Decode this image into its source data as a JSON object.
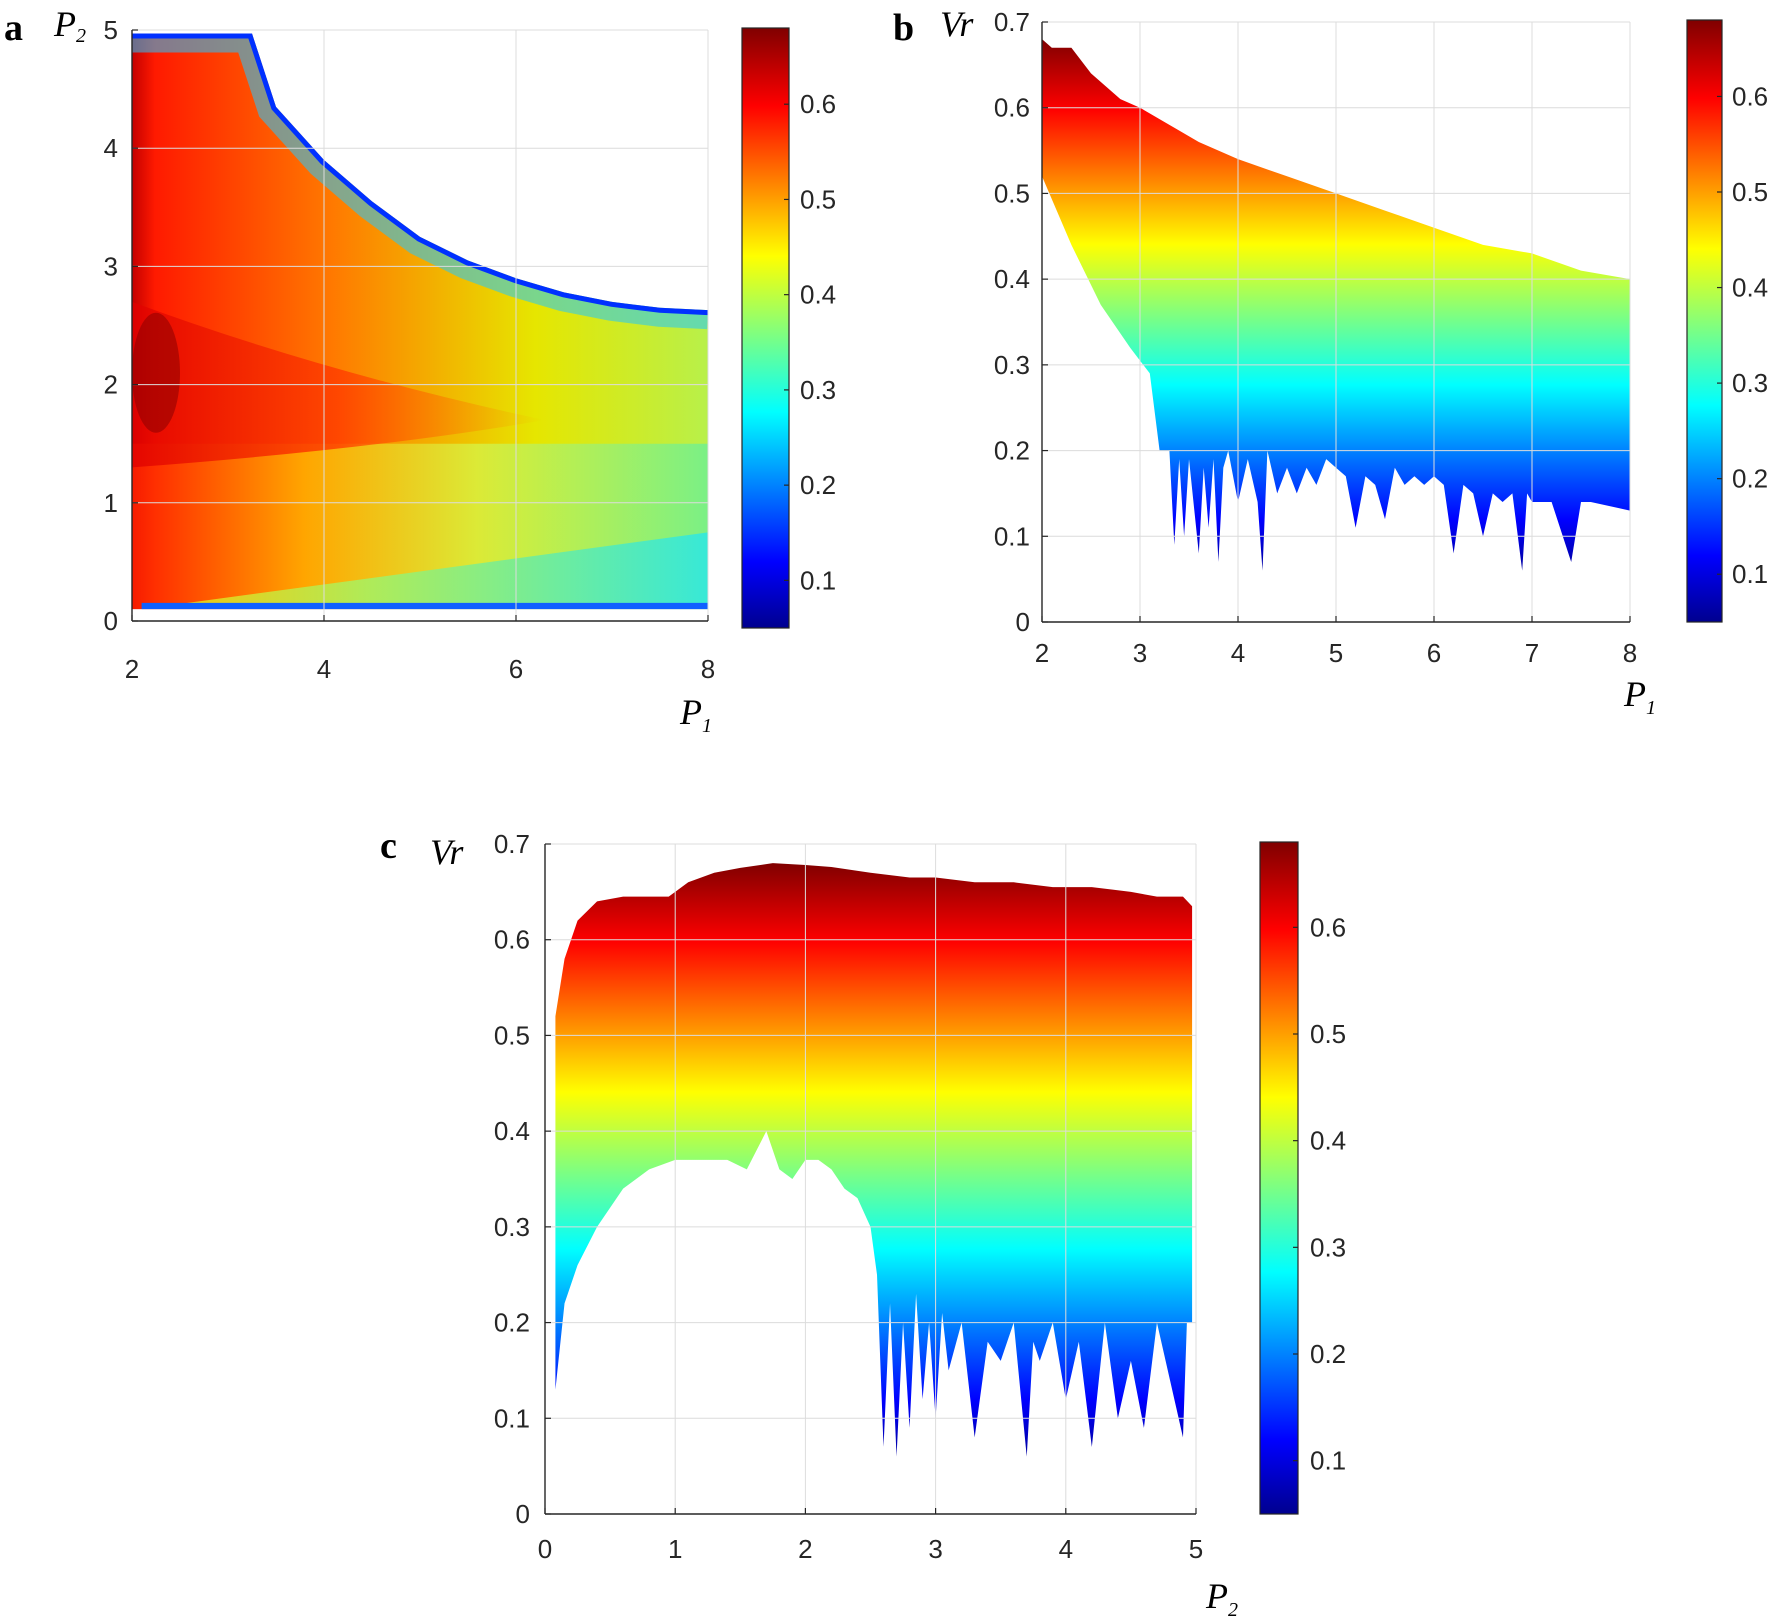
{
  "colors": {
    "jet_dark_blue": "#00008f",
    "jet_blue": "#0000ff",
    "jet_cyan": "#00ffff",
    "jet_yellow": "#ffff00",
    "jet_red": "#ff0000",
    "jet_dark_red": "#800000"
  },
  "chart_data": [
    {
      "id": "a",
      "panel_label": "a",
      "type": "heatmap",
      "xlabel": "P",
      "xlabel_sub": "1",
      "ylabel": "P",
      "ylabel_sub": "2",
      "xlim": [
        2,
        8
      ],
      "ylim": [
        0,
        5
      ],
      "xticks": [
        "2",
        "4",
        "6",
        "8"
      ],
      "yticks": [
        "0",
        "1",
        "2",
        "3",
        "4",
        "5"
      ],
      "grid": true,
      "colorbar": {
        "range": [
          0.05,
          0.68
        ],
        "ticks": [
          "0.1",
          "0.2",
          "0.3",
          "0.4",
          "0.5",
          "0.6"
        ],
        "tick_values": [
          0.1,
          0.2,
          0.3,
          0.4,
          0.5,
          0.6
        ]
      },
      "boundary": [
        [
          2,
          4.97
        ],
        [
          3.25,
          4.97
        ],
        [
          3.5,
          4.35
        ],
        [
          4,
          3.9
        ],
        [
          4.5,
          3.55
        ],
        [
          5,
          3.25
        ],
        [
          5.5,
          3.05
        ],
        [
          6,
          2.9
        ],
        [
          6.5,
          2.78
        ],
        [
          7,
          2.7
        ],
        [
          7.5,
          2.65
        ],
        [
          8,
          2.63
        ]
      ]
    },
    {
      "id": "b",
      "panel_label": "b",
      "type": "area",
      "xlabel": "P",
      "xlabel_sub": "1",
      "ylabel": "Vr",
      "xlim": [
        2,
        8
      ],
      "ylim": [
        0,
        0.7
      ],
      "xticks": [
        "2",
        "3",
        "4",
        "5",
        "6",
        "7",
        "8"
      ],
      "yticks": [
        "0",
        "0.1",
        "0.2",
        "0.3",
        "0.4",
        "0.5",
        "0.6",
        "0.7"
      ],
      "grid": true,
      "colorbar": {
        "range": [
          0.05,
          0.68
        ],
        "ticks": [
          "0.1",
          "0.2",
          "0.3",
          "0.4",
          "0.5",
          "0.6"
        ],
        "tick_values": [
          0.1,
          0.2,
          0.3,
          0.4,
          0.5,
          0.6
        ]
      },
      "upper": {
        "x": [
          2,
          2.1,
          2.3,
          2.5,
          2.8,
          3.0,
          3.3,
          3.6,
          4.0,
          4.5,
          5.0,
          5.5,
          6.0,
          6.5,
          7.0,
          7.5,
          8.0
        ],
        "y": [
          0.68,
          0.67,
          0.67,
          0.64,
          0.61,
          0.6,
          0.58,
          0.56,
          0.54,
          0.52,
          0.5,
          0.48,
          0.46,
          0.44,
          0.43,
          0.41,
          0.4
        ]
      },
      "lower": {
        "x": [
          2,
          2.3,
          2.6,
          2.9,
          3.1,
          3.2,
          3.3,
          3.35,
          3.4,
          3.45,
          3.5,
          3.6,
          3.65,
          3.7,
          3.75,
          3.8,
          3.85,
          3.9,
          4.0,
          4.1,
          4.2,
          4.25,
          4.3,
          4.4,
          4.5,
          4.6,
          4.7,
          4.8,
          4.9,
          5.0,
          5.1,
          5.2,
          5.3,
          5.4,
          5.5,
          5.6,
          5.7,
          5.8,
          5.9,
          6.0,
          6.1,
          6.2,
          6.3,
          6.4,
          6.5,
          6.6,
          6.7,
          6.8,
          6.9,
          6.95,
          7.0,
          7.2,
          7.4,
          7.5,
          7.55,
          7.6,
          8.0
        ],
        "y": [
          0.52,
          0.44,
          0.37,
          0.32,
          0.29,
          0.2,
          0.2,
          0.09,
          0.19,
          0.1,
          0.19,
          0.08,
          0.18,
          0.11,
          0.19,
          0.07,
          0.18,
          0.2,
          0.14,
          0.19,
          0.14,
          0.06,
          0.2,
          0.15,
          0.18,
          0.15,
          0.18,
          0.16,
          0.19,
          0.18,
          0.17,
          0.11,
          0.17,
          0.16,
          0.12,
          0.18,
          0.16,
          0.17,
          0.16,
          0.17,
          0.16,
          0.08,
          0.16,
          0.15,
          0.1,
          0.15,
          0.14,
          0.15,
          0.06,
          0.15,
          0.14,
          0.14,
          0.07,
          0.14,
          0.14,
          0.14,
          0.13
        ]
      }
    },
    {
      "id": "c",
      "panel_label": "c",
      "type": "area",
      "xlabel": "P",
      "xlabel_sub": "2",
      "ylabel": "Vr",
      "xlim": [
        0,
        5
      ],
      "ylim": [
        0,
        0.7
      ],
      "xticks": [
        "0",
        "1",
        "2",
        "3",
        "4",
        "5"
      ],
      "yticks": [
        "0",
        "0.1",
        "0.2",
        "0.3",
        "0.4",
        "0.5",
        "0.6",
        "0.7"
      ],
      "grid": true,
      "colorbar": {
        "range": [
          0.05,
          0.68
        ],
        "ticks": [
          "0.1",
          "0.2",
          "0.3",
          "0.4",
          "0.5",
          "0.6"
        ],
        "tick_values": [
          0.1,
          0.2,
          0.3,
          0.4,
          0.5,
          0.6
        ]
      },
      "upper": {
        "x": [
          0.08,
          0.15,
          0.25,
          0.4,
          0.6,
          0.8,
          0.95,
          1.1,
          1.3,
          1.5,
          1.75,
          2.0,
          2.2,
          2.5,
          2.8,
          3.0,
          3.3,
          3.6,
          3.9,
          4.2,
          4.5,
          4.7,
          4.9,
          4.97
        ],
        "y": [
          0.52,
          0.58,
          0.62,
          0.64,
          0.645,
          0.645,
          0.645,
          0.66,
          0.67,
          0.675,
          0.68,
          0.678,
          0.676,
          0.67,
          0.665,
          0.665,
          0.66,
          0.66,
          0.655,
          0.655,
          0.65,
          0.645,
          0.645,
          0.635
        ]
      },
      "lower": {
        "x": [
          0.08,
          0.15,
          0.25,
          0.4,
          0.6,
          0.8,
          1.0,
          1.2,
          1.4,
          1.55,
          1.7,
          1.8,
          1.9,
          2.0,
          2.1,
          2.2,
          2.3,
          2.4,
          2.5,
          2.55,
          2.6,
          2.65,
          2.7,
          2.75,
          2.8,
          2.85,
          2.9,
          2.95,
          3.0,
          3.05,
          3.1,
          3.2,
          3.3,
          3.4,
          3.5,
          3.6,
          3.7,
          3.75,
          3.8,
          3.9,
          4.0,
          4.1,
          4.2,
          4.3,
          4.4,
          4.5,
          4.6,
          4.7,
          4.8,
          4.9,
          4.93,
          4.97
        ],
        "y": [
          0.13,
          0.22,
          0.26,
          0.3,
          0.34,
          0.36,
          0.37,
          0.37,
          0.37,
          0.36,
          0.4,
          0.36,
          0.35,
          0.37,
          0.37,
          0.36,
          0.34,
          0.33,
          0.3,
          0.25,
          0.07,
          0.22,
          0.06,
          0.2,
          0.09,
          0.23,
          0.12,
          0.2,
          0.1,
          0.21,
          0.15,
          0.2,
          0.08,
          0.18,
          0.16,
          0.2,
          0.06,
          0.18,
          0.16,
          0.2,
          0.12,
          0.18,
          0.07,
          0.2,
          0.1,
          0.16,
          0.09,
          0.2,
          0.14,
          0.08,
          0.2,
          0.2
        ]
      }
    }
  ]
}
